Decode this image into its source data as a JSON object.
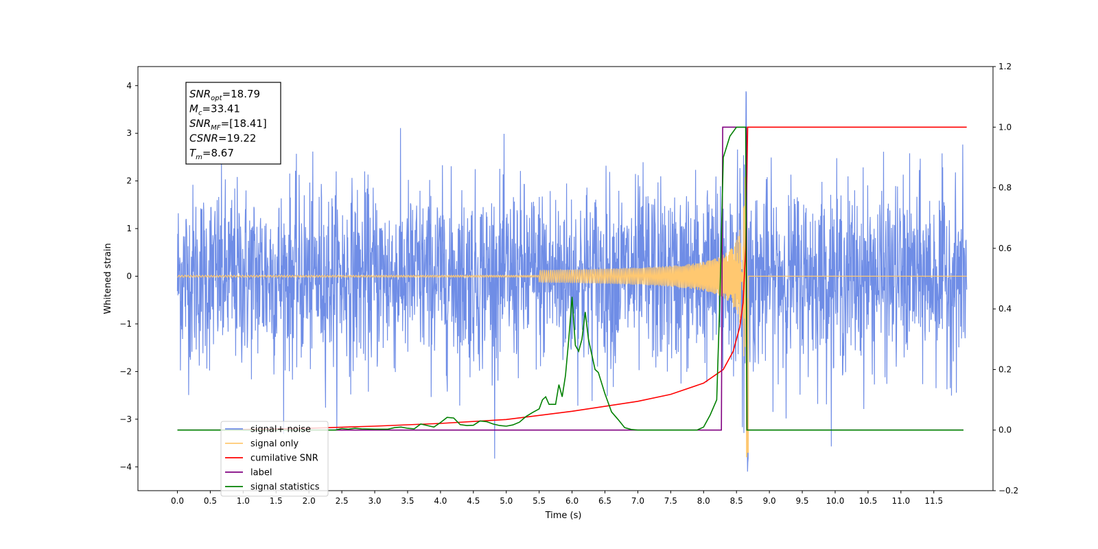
{
  "chart_data": {
    "type": "line",
    "xlabel": "Time (s)",
    "ylabel": "Whitened strain",
    "xlim": [
      -0.6,
      12.4
    ],
    "ylim": [
      -4.5,
      4.4
    ],
    "y2lim": [
      -0.2,
      1.2
    ],
    "x_ticks": [
      "0.0",
      "0.5",
      "1.0",
      "1.5",
      "2.0",
      "2.5",
      "3.0",
      "3.5",
      "4.0",
      "4.5",
      "5.0",
      "5.5",
      "6.0",
      "6.5",
      "7.0",
      "7.5",
      "8.0",
      "8.5",
      "9.0",
      "9.5",
      "10.0",
      "10.5",
      "11.0",
      "11.5"
    ],
    "y_ticks": [
      "4",
      "3",
      "2",
      "1",
      "0",
      "−1",
      "−2",
      "−3",
      "−4"
    ],
    "y2_ticks": [
      "1.2",
      "1.0",
      "0.8",
      "0.6",
      "0.4",
      "0.2",
      "0.0",
      "−0.2"
    ],
    "grid": false,
    "legend_position": "lower-left",
    "annotation": {
      "lines": [
        {
          "base": "SNR",
          "sub": "opt",
          "value": "=18.79"
        },
        {
          "base": "M",
          "sub": "c",
          "value": "=33.41"
        },
        {
          "base": "SNR",
          "sub": "MF",
          "value": "=[18.41]"
        },
        {
          "base": "CSNR",
          "sub": "",
          "value": "=19.22"
        },
        {
          "base": "T",
          "sub": "m",
          "value": "=8.67"
        }
      ]
    },
    "series": [
      {
        "name": "signal+ noise",
        "color": "#6f8de6",
        "axis": "left",
        "description_value_range": [
          -4.1,
          4.05
        ],
        "t_range": [
          0.0,
          12.0
        ]
      },
      {
        "name": "signal only",
        "color": "#ffc870",
        "axis": "left",
        "merger_time": 8.67,
        "peak_amplitude": 3.8
      },
      {
        "name": "cumilative SNR",
        "color": "#ff0000",
        "axis": "right",
        "points": [
          [
            0.8,
            0.0
          ],
          [
            1.0,
            0.002
          ],
          [
            2.0,
            0.006
          ],
          [
            3.0,
            0.013
          ],
          [
            4.0,
            0.022
          ],
          [
            5.0,
            0.035
          ],
          [
            6.0,
            0.062
          ],
          [
            7.0,
            0.095
          ],
          [
            7.5,
            0.118
          ],
          [
            8.0,
            0.155
          ],
          [
            8.3,
            0.2
          ],
          [
            8.45,
            0.26
          ],
          [
            8.55,
            0.34
          ],
          [
            8.6,
            0.42
          ],
          [
            8.64,
            0.6
          ],
          [
            8.66,
            0.85
          ],
          [
            8.67,
            1.0
          ],
          [
            12.0,
            1.0
          ]
        ]
      },
      {
        "name": "label",
        "color": "#800080",
        "axis": "right",
        "points": [
          [
            0.0,
            0.0
          ],
          [
            8.27,
            0.0
          ],
          [
            8.29,
            1.0
          ],
          [
            8.65,
            1.0
          ],
          [
            8.66,
            0.0
          ],
          [
            11.95,
            0.0
          ]
        ]
      },
      {
        "name": "signal statistics",
        "color": "#008000",
        "axis": "right",
        "points": [
          [
            0.0,
            0.0
          ],
          [
            2.4,
            0.0
          ],
          [
            2.5,
            0.005
          ],
          [
            2.6,
            0.003
          ],
          [
            2.7,
            0.006
          ],
          [
            2.8,
            0.004
          ],
          [
            3.0,
            0.003
          ],
          [
            3.2,
            0.003
          ],
          [
            3.3,
            0.008
          ],
          [
            3.4,
            0.01
          ],
          [
            3.5,
            0.006
          ],
          [
            3.6,
            0.004
          ],
          [
            3.7,
            0.02
          ],
          [
            3.8,
            0.015
          ],
          [
            3.9,
            0.01
          ],
          [
            4.0,
            0.025
          ],
          [
            4.1,
            0.042
          ],
          [
            4.2,
            0.04
          ],
          [
            4.3,
            0.018
          ],
          [
            4.4,
            0.015
          ],
          [
            4.5,
            0.016
          ],
          [
            4.6,
            0.03
          ],
          [
            4.7,
            0.028
          ],
          [
            4.8,
            0.02
          ],
          [
            4.9,
            0.015
          ],
          [
            5.0,
            0.013
          ],
          [
            5.1,
            0.017
          ],
          [
            5.2,
            0.026
          ],
          [
            5.3,
            0.045
          ],
          [
            5.4,
            0.058
          ],
          [
            5.5,
            0.07
          ],
          [
            5.55,
            0.1
          ],
          [
            5.6,
            0.11
          ],
          [
            5.65,
            0.085
          ],
          [
            5.7,
            0.085
          ],
          [
            5.75,
            0.085
          ],
          [
            5.8,
            0.15
          ],
          [
            5.85,
            0.11
          ],
          [
            5.9,
            0.18
          ],
          [
            5.95,
            0.3
          ],
          [
            6.0,
            0.44
          ],
          [
            6.05,
            0.28
          ],
          [
            6.1,
            0.26
          ],
          [
            6.15,
            0.3
          ],
          [
            6.2,
            0.39
          ],
          [
            6.25,
            0.3
          ],
          [
            6.3,
            0.25
          ],
          [
            6.35,
            0.2
          ],
          [
            6.4,
            0.19
          ],
          [
            6.5,
            0.12
          ],
          [
            6.6,
            0.06
          ],
          [
            6.7,
            0.035
          ],
          [
            6.8,
            0.008
          ],
          [
            6.9,
            0.002
          ],
          [
            7.0,
            0.0
          ],
          [
            7.9,
            0.0
          ],
          [
            8.0,
            0.01
          ],
          [
            8.1,
            0.05
          ],
          [
            8.2,
            0.1
          ],
          [
            8.25,
            0.45
          ],
          [
            8.3,
            0.9
          ],
          [
            8.4,
            0.97
          ],
          [
            8.5,
            1.0
          ],
          [
            8.64,
            1.0
          ],
          [
            8.66,
            0.0
          ],
          [
            11.95,
            0.0
          ]
        ]
      }
    ]
  }
}
